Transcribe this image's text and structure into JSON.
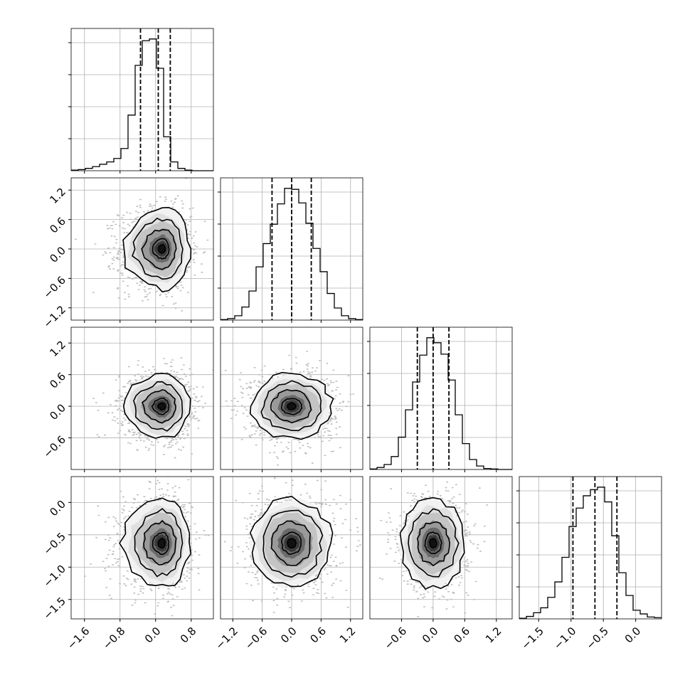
{
  "chart_data": {
    "type": "corner",
    "n_params": 4,
    "grid": true,
    "colors": {
      "line": "#000000",
      "grid": "#b0b0b0",
      "scatter": "#bdbdbd",
      "density_dark": "#1a1a1a"
    },
    "params": [
      {
        "range": [
          -1.9,
          1.3
        ],
        "ticks": [
          "−1.6",
          "−0.8",
          "0.0",
          "0.8"
        ],
        "tick_values": [
          -1.6,
          -0.8,
          0.0,
          0.8
        ],
        "quantiles": [
          -0.34,
          0.06,
          0.33
        ]
      },
      {
        "range": [
          -1.45,
          1.45
        ],
        "ticks": [
          "−1.2",
          "−0.6",
          "0.0",
          "0.6",
          "1.2"
        ],
        "tick_values": [
          -1.2,
          -0.6,
          0.0,
          0.6,
          1.2
        ],
        "quantiles": [
          -0.4,
          0.0,
          0.4
        ]
      },
      {
        "range": [
          -1.2,
          1.5
        ],
        "ticks": [
          "−0.6",
          "0.0",
          "0.6",
          "1.2"
        ],
        "tick_values": [
          -0.6,
          0.0,
          0.6,
          1.2
        ],
        "quantiles": [
          -0.3,
          0.0,
          0.3
        ]
      },
      {
        "range": [
          -1.8,
          0.4
        ],
        "ticks": [
          "−1.5",
          "−1.0",
          "−0.5",
          "0.0"
        ],
        "tick_values": [
          -1.5,
          -1.0,
          -0.5,
          0.0
        ],
        "quantiles": [
          -0.97,
          -0.63,
          -0.29
        ]
      }
    ],
    "histograms": [
      {
        "param": 0,
        "edges_start": -1.9,
        "bin_width": 0.16,
        "counts": [
          1,
          2,
          4,
          7,
          11,
          15,
          21,
          38,
          95,
          180,
          222,
          225,
          175,
          58,
          15,
          4,
          1,
          0,
          0,
          0
        ]
      },
      {
        "param": 1,
        "edges_start": -1.45,
        "bin_width": 0.145,
        "counts": [
          1,
          3,
          9,
          27,
          60,
          110,
          158,
          198,
          240,
          272,
          270,
          242,
          200,
          148,
          100,
          55,
          25,
          9,
          3,
          1
        ]
      },
      {
        "param": 2,
        "edges_start": -1.2,
        "bin_width": 0.135,
        "counts": [
          1,
          4,
          10,
          26,
          65,
          120,
          176,
          230,
          265,
          255,
          232,
          180,
          110,
          52,
          20,
          7,
          2,
          1,
          0,
          0
        ]
      },
      {
        "param": 3,
        "edges_start": -1.8,
        "bin_width": 0.11,
        "counts": [
          1,
          4,
          10,
          18,
          35,
          60,
          100,
          150,
          180,
          200,
          210,
          214,
          190,
          135,
          75,
          38,
          14,
          8,
          3,
          2
        ]
      }
    ],
    "pairs": [
      {
        "x": 0,
        "y": 1,
        "center": [
          0.15,
          0.0
        ],
        "sx": 0.3,
        "sy": 0.4,
        "skew": -0.6
      },
      {
        "x": 0,
        "y": 2,
        "center": [
          0.15,
          0.0
        ],
        "sx": 0.3,
        "sy": 0.3,
        "skew": -0.6
      },
      {
        "x": 0,
        "y": 3,
        "center": [
          0.15,
          -0.63
        ],
        "sx": 0.3,
        "sy": 0.33,
        "skew": -0.6
      },
      {
        "x": 1,
        "y": 2,
        "center": [
          0.0,
          0.0
        ],
        "sx": 0.4,
        "sy": 0.3,
        "skew": 0
      },
      {
        "x": 1,
        "y": 3,
        "center": [
          0.0,
          -0.63
        ],
        "sx": 0.4,
        "sy": 0.33,
        "skew": 0
      },
      {
        "x": 2,
        "y": 3,
        "center": [
          0.0,
          -0.63
        ],
        "sx": 0.3,
        "sy": 0.33,
        "skew": 0
      }
    ]
  }
}
